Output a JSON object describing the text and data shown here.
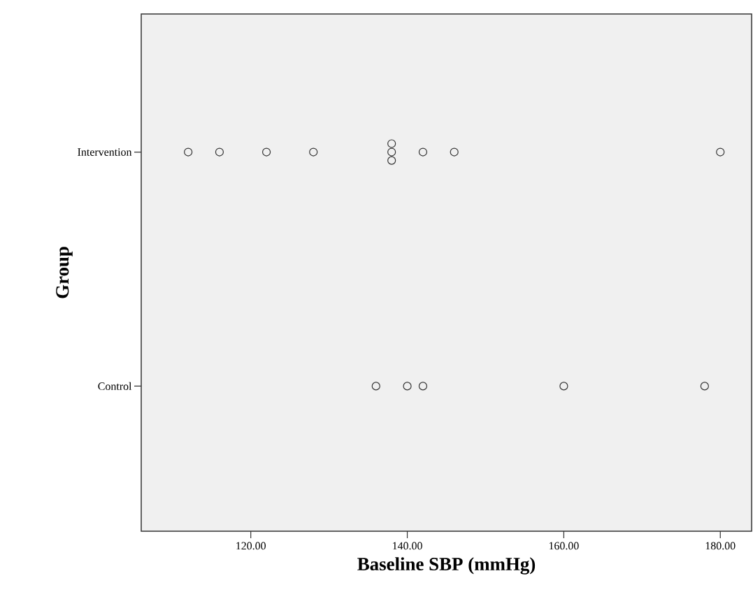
{
  "chart_data": {
    "type": "scatter",
    "orientation": "horizontal",
    "xlabel": "Baseline SBP (mmHg)",
    "ylabel": "Group",
    "categories": [
      "Intervention",
      "Control"
    ],
    "series": [
      {
        "color": "#333333",
        "x": [
          "Intervention",
          "Intervention",
          "Intervention",
          "Intervention",
          "Intervention",
          "Intervention",
          "Intervention",
          "Intervention",
          "Intervention",
          "Intervention"
        ],
        "values": [
          112,
          116,
          122,
          128,
          138,
          138,
          138,
          142,
          146,
          180
        ]
      },
      {
        "color": "#333333",
        "x": [
          "Control",
          "Control",
          "Control",
          "Control",
          "Control"
        ],
        "values": [
          136,
          140,
          142,
          160,
          178
        ]
      }
    ],
    "xlim": [
      106,
      184
    ],
    "xticks": [
      {
        "value": 120,
        "label": "120.00"
      },
      {
        "value": 140,
        "label": "140.00"
      },
      {
        "value": 160,
        "label": "160.00"
      },
      {
        "value": 180,
        "label": "180.00"
      }
    ],
    "marker": "circle",
    "grid": false
  }
}
